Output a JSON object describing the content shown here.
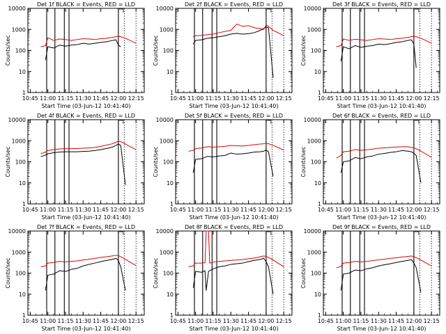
{
  "figure": {
    "xlabel": "Start Time (03-Jun-12 10:41:40)",
    "ylabel": "Counts/sec",
    "x_tick_labels": [
      "10:45",
      "11:00",
      "11:15",
      "11:30",
      "11:45",
      "12:00",
      "12:15"
    ],
    "y_tick_labels": [
      "1",
      "10",
      "100",
      "1000",
      "10000"
    ],
    "colors": {
      "events": "#000000",
      "lld": "#e00000",
      "axes": "#000000"
    }
  },
  "chart_data": [
    {
      "type": "line",
      "title": "Det 1f BLACK = Events, RED = LLD",
      "xlabel": "Start Time (03-Jun-12 10:41:40)",
      "ylabel": "Counts/sec",
      "y_scale": "log",
      "ylim": [
        1,
        10000
      ],
      "x": [
        "10:54",
        "10:56",
        "10:58",
        "11:00",
        "11:05",
        "11:10",
        "11:15",
        "11:20",
        "11:25",
        "11:30",
        "11:35",
        "11:40",
        "11:45",
        "11:50",
        "11:55",
        "11:58",
        "12:00",
        "12:02",
        "12:06",
        "12:10",
        "12:15"
      ],
      "series": [
        {
          "name": "BLACK = Events",
          "color": "#000000",
          "values": [
            null,
            null,
            35,
            150,
            130,
            180,
            160,
            180,
            190,
            220,
            200,
            220,
            240,
            260,
            300,
            320,
            180,
            150,
            null,
            null,
            null
          ]
        },
        {
          "name": "RED = LLD",
          "color": "#e00000",
          "values": [
            150,
            160,
            170,
            400,
            300,
            350,
            330,
            300,
            330,
            360,
            350,
            330,
            360,
            380,
            420,
            450,
            480,
            450,
            380,
            300,
            220
          ]
        }
      ],
      "vertical_markers": [
        "10:59",
        "11:06",
        "11:14",
        "11:18",
        "12:00",
        "12:05",
        "12:15"
      ]
    },
    {
      "type": "line",
      "title": "Det 2f BLACK = Events, RED = LLD",
      "xlabel": "Start Time (03-Jun-12 10:41:40)",
      "ylabel": "Counts/sec",
      "y_scale": "log",
      "ylim": [
        1,
        10000
      ],
      "x": [
        "10:54",
        "10:56",
        "10:58",
        "11:00",
        "11:05",
        "11:10",
        "11:15",
        "11:20",
        "11:25",
        "11:30",
        "11:35",
        "11:40",
        "11:45",
        "11:50",
        "11:55",
        "11:58",
        "12:00",
        "12:02",
        "12:06",
        "12:10",
        "12:15"
      ],
      "series": [
        {
          "name": "BLACK = Events",
          "color": "#000000",
          "values": [
            null,
            null,
            200,
            300,
            320,
            380,
            400,
            450,
            500,
            600,
            650,
            600,
            620,
            700,
            900,
            1100,
            1300,
            1200,
            5,
            null,
            null
          ]
        },
        {
          "name": "RED = LLD",
          "color": "#e00000",
          "values": [
            null,
            null,
            450,
            500,
            520,
            560,
            600,
            700,
            800,
            900,
            1800,
            1400,
            1500,
            1200,
            1100,
            1000,
            1600,
            1400,
            900,
            700,
            500
          ]
        }
      ],
      "vertical_markers": [
        "10:59",
        "11:06",
        "11:14",
        "11:18",
        "12:00",
        "12:05",
        "12:15"
      ]
    },
    {
      "type": "line",
      "title": "Det 3f BLACK = Events, RED = LLD",
      "xlabel": "Start Time (03-Jun-12 10:41:40)",
      "ylabel": "Counts/sec",
      "y_scale": "log",
      "ylim": [
        1,
        10000
      ],
      "x": [
        "10:54",
        "10:56",
        "10:58",
        "11:00",
        "11:05",
        "11:10",
        "11:15",
        "11:20",
        "11:25",
        "11:30",
        "11:35",
        "11:40",
        "11:45",
        "11:50",
        "11:55",
        "11:58",
        "12:00",
        "12:02",
        "12:06",
        "12:10",
        "12:15"
      ],
      "series": [
        {
          "name": "BLACK = Events",
          "color": "#000000",
          "values": [
            null,
            null,
            30,
            150,
            120,
            170,
            140,
            160,
            170,
            200,
            190,
            210,
            240,
            260,
            300,
            320,
            200,
            15,
            null,
            null,
            null
          ]
        },
        {
          "name": "RED = LLD",
          "color": "#e00000",
          "values": [
            150,
            160,
            170,
            350,
            300,
            340,
            320,
            300,
            330,
            360,
            350,
            330,
            360,
            380,
            420,
            450,
            480,
            450,
            380,
            300,
            220
          ]
        }
      ],
      "vertical_markers": [
        "10:59",
        "11:06",
        "11:14",
        "11:18",
        "12:00",
        "12:05",
        "12:15"
      ]
    },
    {
      "type": "line",
      "title": "Det 4f BLACK = Events, RED = LLD",
      "xlabel": "Start Time (03-Jun-12 10:41:40)",
      "ylabel": "Counts/sec",
      "y_scale": "log",
      "ylim": [
        1,
        10000
      ],
      "x": [
        "10:54",
        "10:56",
        "10:58",
        "11:00",
        "11:05",
        "11:10",
        "11:15",
        "11:20",
        "11:25",
        "11:30",
        "11:35",
        "11:40",
        "11:45",
        "11:50",
        "11:55",
        "11:58",
        "12:00",
        "12:02",
        "12:06",
        "12:10",
        "12:15"
      ],
      "series": [
        {
          "name": "BLACK = Events",
          "color": "#000000",
          "values": [
            180,
            190,
            210,
            240,
            270,
            290,
            300,
            300,
            300,
            310,
            320,
            340,
            380,
            430,
            500,
            600,
            700,
            600,
            8,
            null,
            null
          ]
        },
        {
          "name": "RED = LLD",
          "color": "#e00000",
          "values": [
            250,
            260,
            290,
            340,
            380,
            410,
            420,
            420,
            430,
            440,
            460,
            480,
            540,
            620,
            720,
            850,
            950,
            900,
            700,
            520,
            380
          ]
        }
      ],
      "vertical_markers": [
        "10:59",
        "11:06",
        "11:14",
        "11:18",
        "12:00",
        "12:05",
        "12:15"
      ]
    },
    {
      "type": "line",
      "title": "Det 5f BLACK = Events, RED = LLD",
      "xlabel": "Start Time (03-Jun-12 10:41:40)",
      "ylabel": "Counts/sec",
      "y_scale": "log",
      "ylim": [
        1,
        10000
      ],
      "x": [
        "10:54",
        "10:56",
        "10:58",
        "11:00",
        "11:05",
        "11:10",
        "11:15",
        "11:20",
        "11:25",
        "11:30",
        "11:35",
        "11:40",
        "11:45",
        "11:50",
        "11:55",
        "11:58",
        "12:00",
        "12:02",
        "12:06",
        "12:10",
        "12:15"
      ],
      "series": [
        {
          "name": "BLACK = Events",
          "color": "#000000",
          "values": [
            null,
            null,
            30,
            130,
            140,
            180,
            170,
            190,
            200,
            260,
            230,
            240,
            260,
            290,
            300,
            320,
            360,
            300,
            20,
            null,
            null
          ]
        },
        {
          "name": "RED = LLD",
          "color": "#e00000",
          "values": [
            320,
            330,
            350,
            420,
            450,
            520,
            500,
            520,
            540,
            600,
            580,
            560,
            600,
            650,
            700,
            720,
            760,
            720,
            600,
            480,
            360
          ]
        }
      ],
      "vertical_markers": [
        "10:59",
        "11:06",
        "11:14",
        "11:18",
        "12:00",
        "12:05",
        "12:15"
      ]
    },
    {
      "type": "line",
      "title": "Det 6f BLACK = Events, RED = LLD",
      "xlabel": "Start Time (03-Jun-12 10:41:40)",
      "ylabel": "Counts/sec",
      "y_scale": "log",
      "ylim": [
        1,
        10000
      ],
      "x": [
        "10:54",
        "10:56",
        "10:58",
        "11:00",
        "11:05",
        "11:10",
        "11:15",
        "11:20",
        "11:25",
        "11:30",
        "11:35",
        "11:40",
        "11:45",
        "11:50",
        "11:55",
        "11:58",
        "12:00",
        "12:02",
        "12:06",
        "12:10",
        "12:15"
      ],
      "series": [
        {
          "name": "BLACK = Events",
          "color": "#000000",
          "values": [
            null,
            null,
            30,
            100,
            110,
            160,
            140,
            170,
            190,
            230,
            250,
            280,
            300,
            340,
            320,
            300,
            250,
            200,
            10,
            null,
            null
          ]
        },
        {
          "name": "RED = LLD",
          "color": "#e00000",
          "values": [
            150,
            170,
            200,
            300,
            320,
            380,
            350,
            370,
            400,
            440,
            460,
            480,
            500,
            520,
            520,
            480,
            460,
            420,
            320,
            240,
            160
          ]
        }
      ],
      "vertical_markers": [
        "10:59",
        "11:06",
        "11:14",
        "11:18",
        "12:00",
        "12:05",
        "12:15"
      ]
    },
    {
      "type": "line",
      "title": "Det 7f BLACK = Events, RED = LLD",
      "xlabel": "Start Time (03-Jun-12 10:41:40)",
      "ylabel": "Counts/sec",
      "y_scale": "log",
      "ylim": [
        1,
        10000
      ],
      "x": [
        "10:54",
        "10:56",
        "10:58",
        "11:00",
        "11:05",
        "11:10",
        "11:15",
        "11:20",
        "11:25",
        "11:30",
        "11:35",
        "11:40",
        "11:45",
        "11:50",
        "11:55",
        "11:58",
        "12:00",
        "12:02",
        "12:06",
        "12:10",
        "12:15"
      ],
      "series": [
        {
          "name": "BLACK = Events",
          "color": "#000000",
          "values": [
            null,
            null,
            15,
            80,
            90,
            130,
            120,
            150,
            170,
            220,
            260,
            300,
            350,
            400,
            450,
            500,
            400,
            200,
            15,
            null,
            null
          ]
        },
        {
          "name": "RED = LLD",
          "color": "#e00000",
          "values": [
            200,
            210,
            220,
            300,
            320,
            360,
            340,
            360,
            380,
            420,
            460,
            500,
            560,
            600,
            660,
            700,
            680,
            600,
            450,
            330,
            230
          ]
        }
      ],
      "vertical_markers": [
        "10:59",
        "11:06",
        "11:14",
        "11:18",
        "12:00",
        "12:05",
        "12:15"
      ]
    },
    {
      "type": "line",
      "title": "Det 8f BLACK = Events, RED = LLD",
      "xlabel": "Start Time (03-Jun-12 10:41:40)",
      "ylabel": "Counts/sec",
      "y_scale": "log",
      "ylim": [
        1,
        10000
      ],
      "x": [
        "10:54",
        "10:56",
        "10:58",
        "11:00",
        "11:05",
        "11:08",
        "11:09",
        "11:11",
        "11:12",
        "11:15",
        "11:20",
        "11:25",
        "11:30",
        "11:35",
        "11:40",
        "11:45",
        "11:50",
        "11:55",
        "11:58",
        "12:00",
        "12:02",
        "12:06",
        "12:10",
        "12:15"
      ],
      "series": [
        {
          "name": "BLACK = Events",
          "color": "#000000",
          "values": [
            null,
            null,
            20,
            120,
            110,
            130,
            15,
            120,
            130,
            160,
            200,
            220,
            260,
            280,
            300,
            350,
            400,
            450,
            500,
            350,
            200,
            10,
            null,
            null
          ]
        },
        {
          "name": "RED = LLD",
          "color": "#e00000",
          "values": [
            200,
            210,
            220,
            300,
            300,
            310,
            10000,
            10000,
            300,
            330,
            360,
            380,
            400,
            420,
            440,
            480,
            520,
            600,
            650,
            620,
            560,
            420,
            300,
            200
          ]
        }
      ],
      "vertical_markers": [
        "10:59",
        "11:06",
        "11:14",
        "11:18",
        "12:00",
        "12:05",
        "12:15"
      ]
    },
    {
      "type": "line",
      "title": "Det 9f BLACK = Events, RED = LLD",
      "xlabel": "Start Time (03-Jun-12 10:41:40)",
      "ylabel": "Counts/sec",
      "y_scale": "log",
      "ylim": [
        1,
        10000
      ],
      "x": [
        "10:54",
        "10:56",
        "10:58",
        "11:00",
        "11:05",
        "11:10",
        "11:15",
        "11:20",
        "11:25",
        "11:30",
        "11:35",
        "11:40",
        "11:45",
        "11:50",
        "11:55",
        "11:58",
        "12:00",
        "12:02",
        "12:06",
        "12:10",
        "12:15"
      ],
      "series": [
        {
          "name": "BLACK = Events",
          "color": "#000000",
          "values": [
            null,
            null,
            15,
            90,
            100,
            140,
            130,
            160,
            180,
            220,
            250,
            280,
            320,
            360,
            400,
            440,
            300,
            180,
            12,
            null,
            null
          ]
        },
        {
          "name": "RED = LLD",
          "color": "#e00000",
          "values": [
            180,
            190,
            210,
            300,
            320,
            360,
            340,
            360,
            390,
            430,
            460,
            500,
            540,
            580,
            620,
            650,
            600,
            540,
            420,
            310,
            220
          ]
        }
      ],
      "vertical_markers": [
        "10:59",
        "11:06",
        "11:14",
        "11:18",
        "12:00",
        "12:05",
        "12:15"
      ]
    }
  ]
}
